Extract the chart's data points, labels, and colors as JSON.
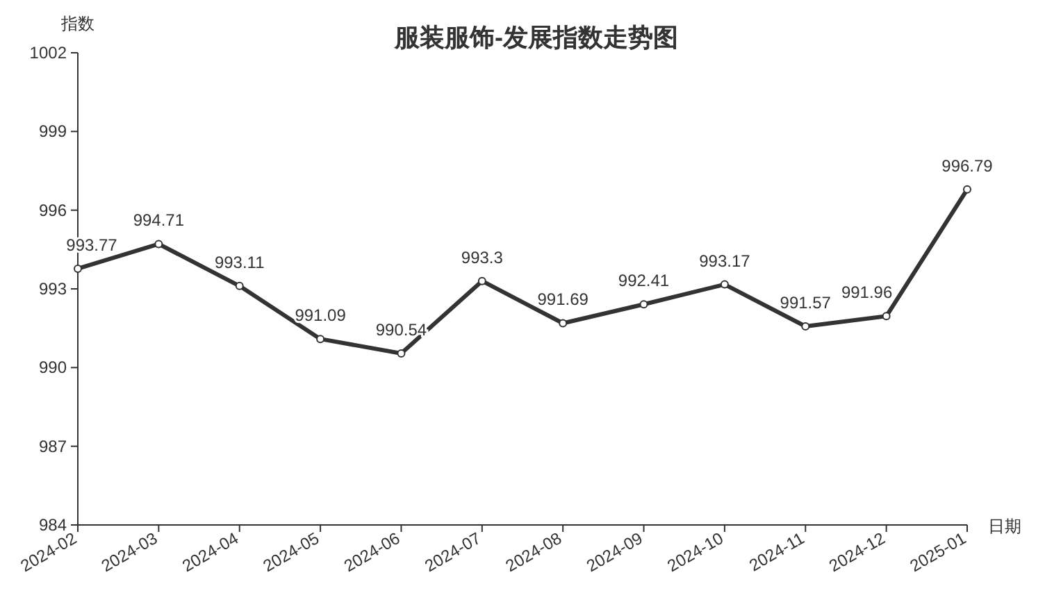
{
  "chart_data": {
    "type": "line",
    "title": "服装服饰-发展指数走势图",
    "xlabel": "日期",
    "ylabel": "指数",
    "categories": [
      "2024-02",
      "2024-03",
      "2024-04",
      "2024-05",
      "2024-06",
      "2024-07",
      "2024-08",
      "2024-09",
      "2024-10",
      "2024-11",
      "2024-12",
      "2025-01"
    ],
    "series": [
      {
        "color": "#333333",
        "values": [
          993.77,
          994.71,
          993.11,
          991.09,
          990.54,
          993.3,
          991.69,
          992.41,
          993.17,
          991.57,
          991.96,
          996.79
        ]
      }
    ],
    "ylim": [
      984,
      1002
    ],
    "yticks": [
      984,
      987,
      990,
      993,
      996,
      999,
      1002
    ],
    "data_labels": true,
    "marker": "circle",
    "line_style": "solid",
    "grid": false
  }
}
